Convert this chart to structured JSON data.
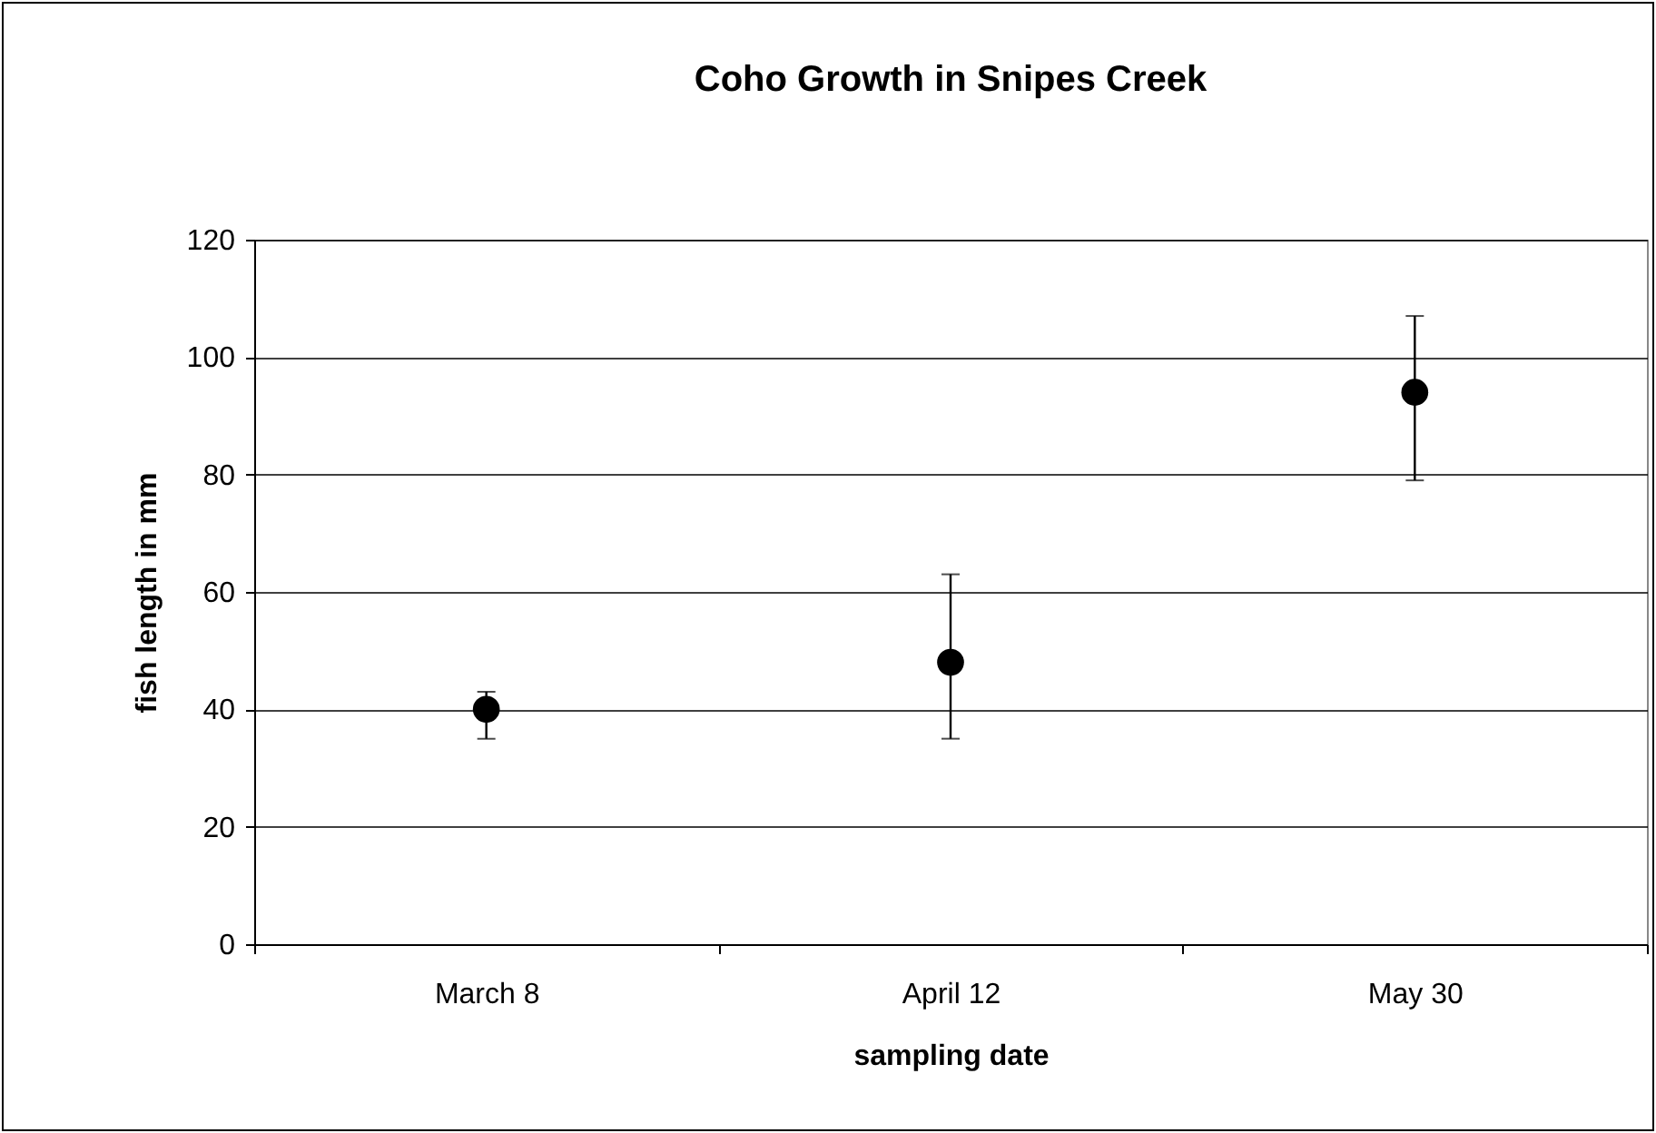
{
  "chart_data": {
    "type": "scatter",
    "title": "Coho Growth in Snipes Creek",
    "xlabel": "sampling date",
    "ylabel": "fish length in mm",
    "categories": [
      "March 8",
      "April 12",
      "May 30"
    ],
    "series": [
      {
        "color": "#000000",
        "values": [
          40,
          48,
          94
        ],
        "errors": [
          [
            35,
            43
          ],
          [
            35,
            63
          ],
          [
            79,
            107
          ]
        ]
      }
    ],
    "ylim": [
      0,
      120
    ],
    "yticks": [
      0,
      20,
      40,
      60,
      80,
      100,
      120
    ],
    "grid": "y",
    "marker": "circle"
  }
}
